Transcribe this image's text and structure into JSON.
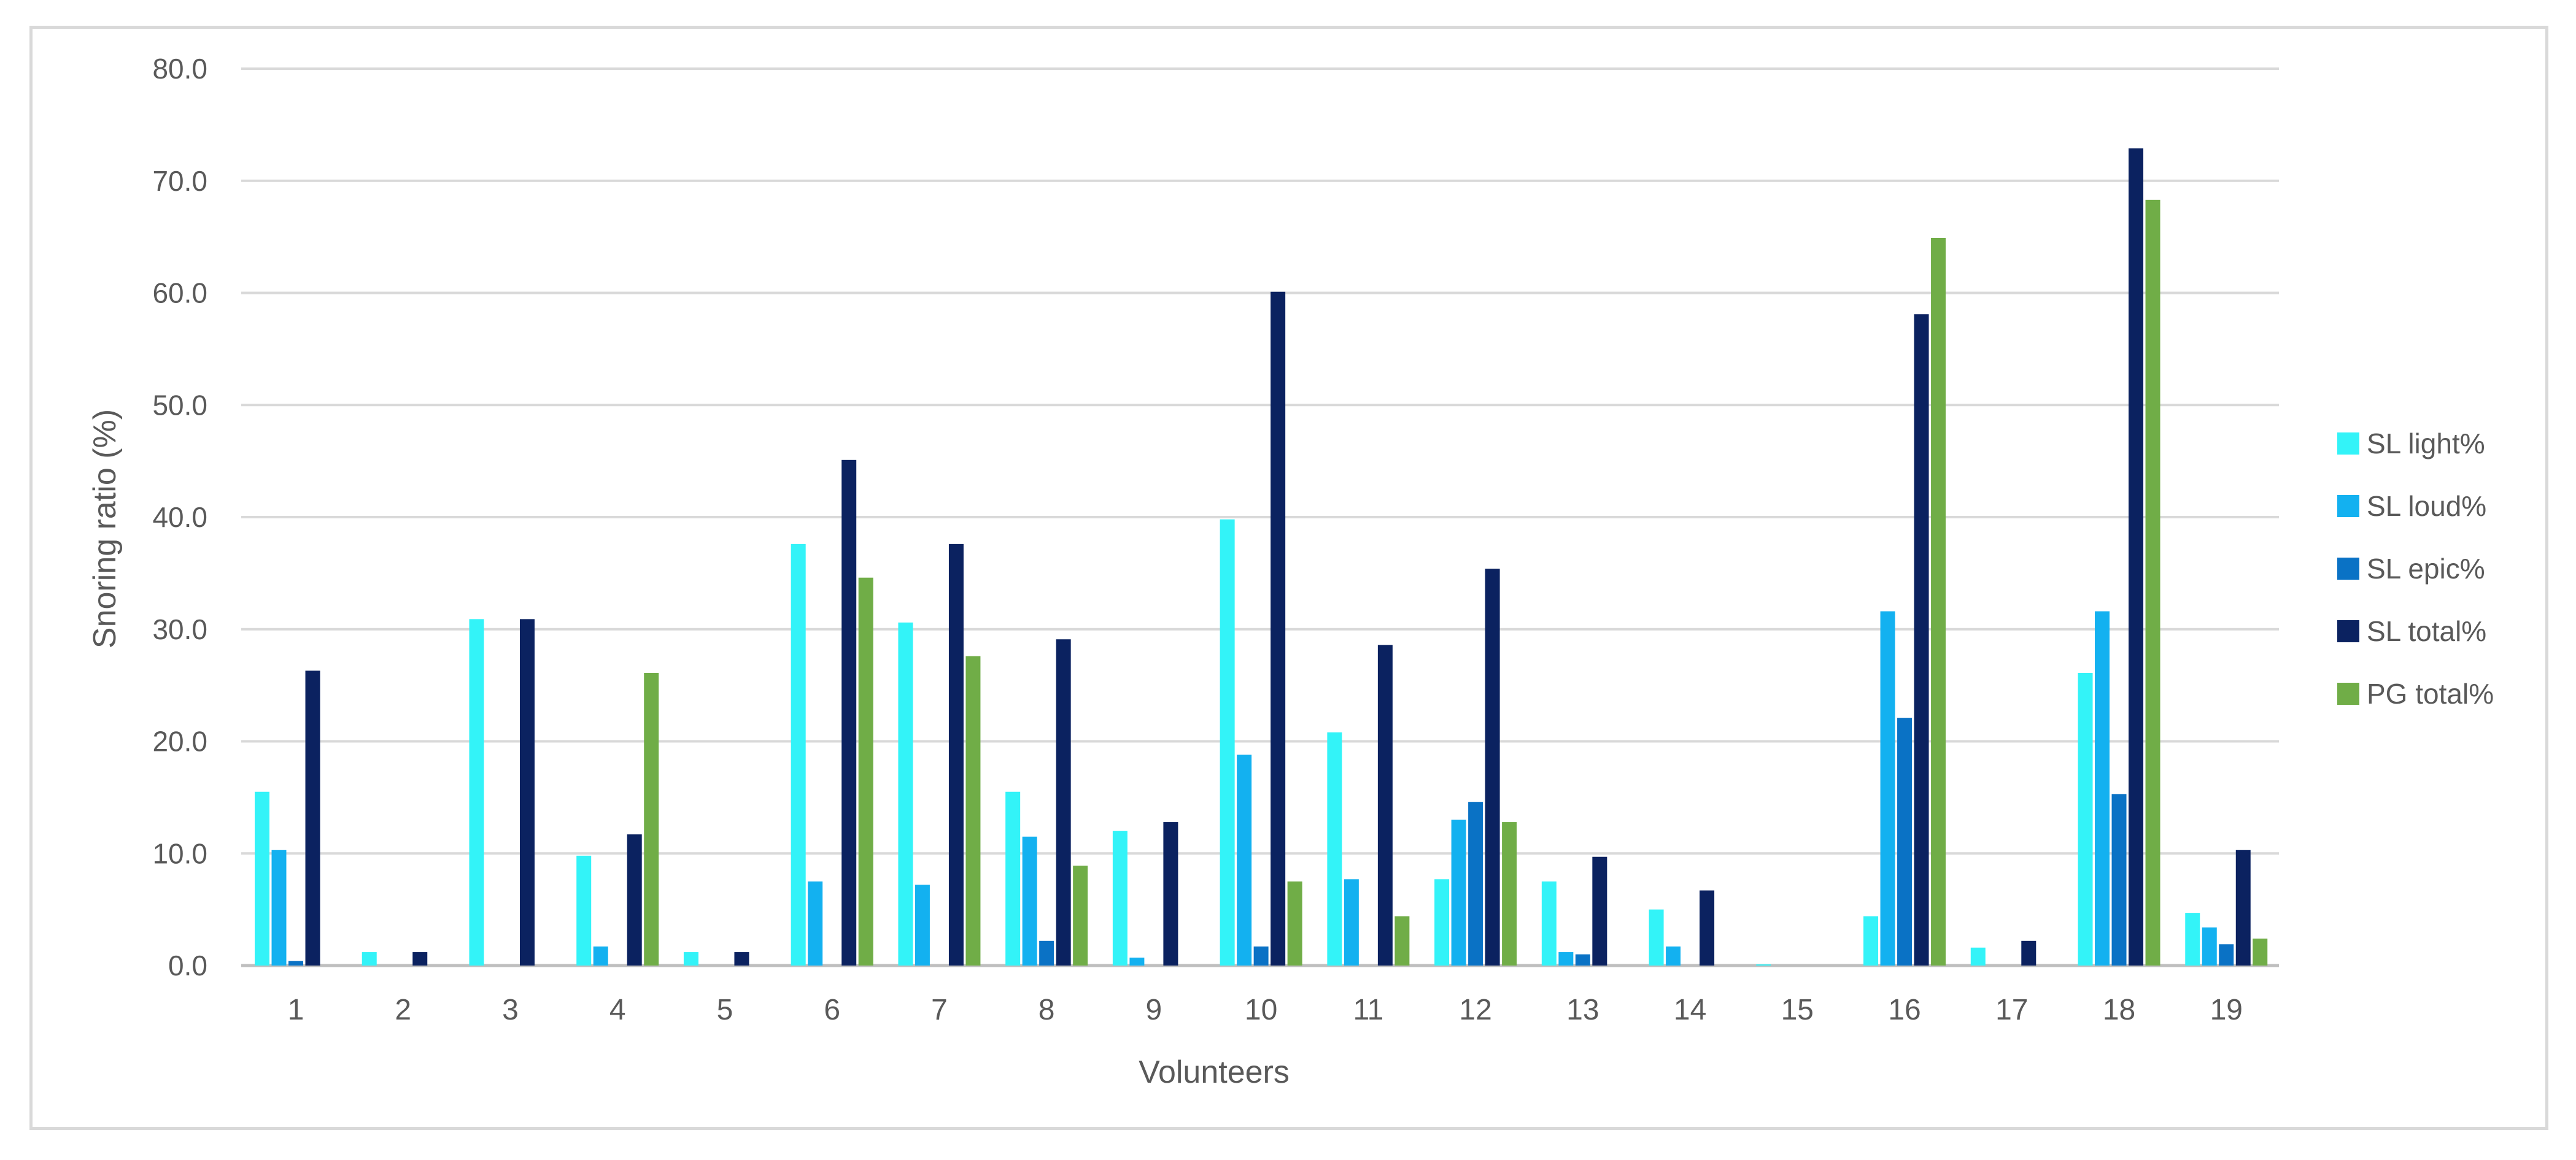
{
  "chart_data": {
    "type": "bar",
    "title": "",
    "xlabel": "Volunteers",
    "ylabel": "Snoring ratio (%)",
    "ylim": [
      0,
      80
    ],
    "yticks": [
      "0.0",
      "10.0",
      "20.0",
      "30.0",
      "40.0",
      "50.0",
      "60.0",
      "70.0",
      "80.0"
    ],
    "grid": true,
    "legend_position": "right",
    "categories": [
      "1",
      "2",
      "3",
      "4",
      "5",
      "6",
      "7",
      "8",
      "9",
      "10",
      "11",
      "12",
      "13",
      "14",
      "15",
      "16",
      "17",
      "18",
      "19"
    ],
    "series": [
      {
        "name": "SL light%",
        "color": "#33F3F8",
        "values": [
          15.5,
          1.2,
          30.9,
          9.8,
          1.2,
          37.6,
          30.6,
          15.5,
          12.0,
          39.8,
          20.8,
          7.7,
          7.5,
          5.0,
          0.1,
          4.4,
          1.6,
          26.1,
          4.7
        ]
      },
      {
        "name": "SL loud%",
        "color": "#13B1F0",
        "values": [
          10.3,
          0,
          0,
          1.7,
          0,
          7.5,
          7.2,
          11.5,
          0.7,
          18.8,
          7.7,
          13.0,
          1.2,
          1.7,
          0,
          31.6,
          0,
          31.6,
          3.4
        ]
      },
      {
        "name": "SL epic%",
        "color": "#0A72C5",
        "values": [
          0.4,
          0,
          0,
          0,
          0,
          0,
          0,
          2.2,
          0,
          1.7,
          0,
          14.6,
          1.0,
          0,
          0,
          22.1,
          0,
          15.3,
          1.9
        ]
      },
      {
        "name": "SL total%",
        "color": "#0B2260",
        "values": [
          26.3,
          1.2,
          30.9,
          11.7,
          1.2,
          45.1,
          37.6,
          29.1,
          12.8,
          60.1,
          28.6,
          35.4,
          9.7,
          6.7,
          0,
          58.1,
          2.2,
          72.9,
          10.3
        ]
      },
      {
        "name": "PG total%",
        "color": "#70AD47",
        "values": [
          0,
          0,
          0,
          26.1,
          0,
          34.6,
          27.6,
          8.9,
          0,
          7.5,
          4.4,
          12.8,
          0,
          0,
          0,
          64.9,
          0,
          68.3,
          2.4
        ]
      }
    ]
  }
}
